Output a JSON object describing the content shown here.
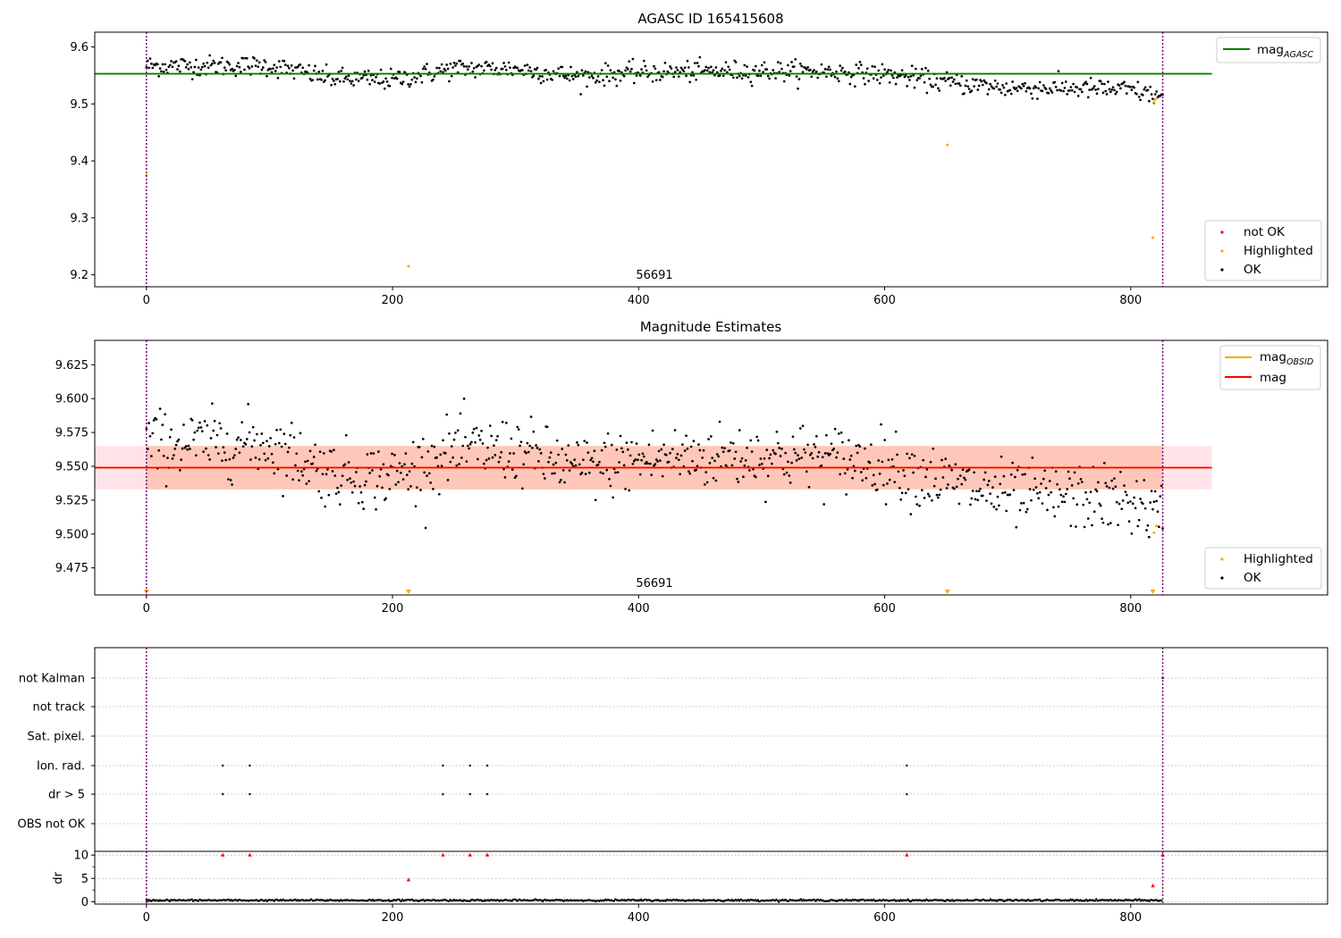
{
  "figure": {
    "background": "#ffffff"
  },
  "colors": {
    "ok": "#000000",
    "highlighted": "#ffa500",
    "not_ok": "#ff0000",
    "agasc_line": "#008000",
    "obsid_line": "#ffa500",
    "mag_line": "#ff0000",
    "band_outer": "#ffc0cb",
    "band_inner": "#ffa07a",
    "vline": "#800080",
    "grid": "#b0b0b0"
  },
  "chart_data": [
    {
      "type": "scatter",
      "title": "AGASC ID 165415608",
      "annotation": "56691",
      "xlim": [
        -42,
        960
      ],
      "ylim": [
        9.179,
        9.626
      ],
      "xticks": [
        0,
        200,
        400,
        600,
        800
      ],
      "yticks": [
        9.2,
        9.3,
        9.4,
        9.5,
        9.6
      ],
      "ytick_labels": [
        "9.2",
        "9.3",
        "9.4",
        "9.5",
        "9.6"
      ],
      "vlines": [
        0,
        826
      ],
      "hlines": [
        {
          "name": "mag_AGASC",
          "y": 9.553,
          "x_range": [
            -42,
            866
          ]
        }
      ],
      "legend_lines": [
        {
          "label": "mag",
          "sub": "AGASC"
        }
      ],
      "legend_points": [
        "not OK",
        "Highlighted",
        "OK"
      ],
      "ok_series": {
        "name": "OK",
        "n_points": 820,
        "x_range": [
          0,
          826
        ],
        "trend": [
          [
            0,
            9.567
          ],
          [
            100,
            9.567
          ],
          [
            150,
            9.545
          ],
          [
            200,
            9.542
          ],
          [
            250,
            9.562
          ],
          [
            300,
            9.562
          ],
          [
            350,
            9.548
          ],
          [
            400,
            9.555
          ],
          [
            450,
            9.557
          ],
          [
            500,
            9.558
          ],
          [
            550,
            9.557
          ],
          [
            600,
            9.552
          ],
          [
            650,
            9.538
          ],
          [
            700,
            9.528
          ],
          [
            750,
            9.528
          ],
          [
            800,
            9.524
          ],
          [
            826,
            9.512
          ]
        ],
        "scatter_sd": 0.009
      },
      "highlighted": [
        {
          "x": 0,
          "y": 9.375
        },
        {
          "x": 213,
          "y": 9.215
        },
        {
          "x": 651,
          "y": 9.428
        },
        {
          "x": 818,
          "y": 9.265
        },
        {
          "x": 819,
          "y": 9.503
        },
        {
          "x": 820,
          "y": 9.508
        }
      ]
    },
    {
      "type": "scatter",
      "title": "Magnitude Estimates",
      "annotation": "56691",
      "xlim": [
        -42,
        960
      ],
      "ylim": [
        9.455,
        9.643
      ],
      "xticks": [
        0,
        200,
        400,
        600,
        800
      ],
      "yticks": [
        9.475,
        9.5,
        9.525,
        9.55,
        9.575,
        9.6,
        9.625
      ],
      "ytick_labels": [
        "9.475",
        "9.500",
        "9.525",
        "9.550",
        "9.575",
        "9.600",
        "9.625"
      ],
      "vlines": [
        0,
        826
      ],
      "hlines": [
        {
          "name": "mag_OBSID",
          "y": 9.549,
          "x_range": [
            -42,
            866
          ]
        },
        {
          "name": "mag",
          "y": 9.549,
          "x_range": [
            -42,
            866
          ]
        }
      ],
      "bands": [
        {
          "name": "mag-range",
          "y": [
            9.533,
            9.565
          ],
          "x_range": [
            -42,
            866
          ]
        },
        {
          "name": "mag_OBSID-range",
          "y": [
            9.533,
            9.565
          ],
          "x_range": [
            0,
            826
          ]
        }
      ],
      "legend_lines": [
        {
          "label": "mag",
          "sub": "OBSID"
        },
        {
          "label": "mag",
          "sub": ""
        }
      ],
      "legend_points": [
        "Highlighted",
        "OK"
      ],
      "ok_series": {
        "name": "OK",
        "n_points": 820,
        "x_range": [
          0,
          826
        ],
        "trend": [
          [
            0,
            9.567
          ],
          [
            100,
            9.567
          ],
          [
            150,
            9.545
          ],
          [
            200,
            9.542
          ],
          [
            250,
            9.562
          ],
          [
            300,
            9.562
          ],
          [
            350,
            9.548
          ],
          [
            400,
            9.555
          ],
          [
            450,
            9.557
          ],
          [
            500,
            9.558
          ],
          [
            550,
            9.557
          ],
          [
            600,
            9.552
          ],
          [
            650,
            9.538
          ],
          [
            700,
            9.528
          ],
          [
            750,
            9.528
          ],
          [
            800,
            9.524
          ],
          [
            826,
            9.512
          ]
        ],
        "scatter_sd": 0.012
      },
      "highlighted": [
        {
          "x": 819,
          "y": 9.501
        },
        {
          "x": 821,
          "y": 9.506
        }
      ],
      "off_scale_markers": [
        0,
        213,
        651,
        818
      ]
    },
    {
      "type": "scatter",
      "title": "",
      "xlim": [
        -42,
        960
      ],
      "xticks": [
        0,
        200,
        400,
        600,
        800
      ],
      "flag_rows": [
        "not Kalman",
        "not track",
        "Sat. pixel.",
        "Ion. rad.",
        "dr > 5",
        "OBS not OK"
      ],
      "flag_points": {
        "Ion. rad.": [
          62,
          84,
          241,
          263,
          277,
          618
        ],
        "dr > 5": [
          62,
          84,
          241,
          263,
          277,
          618
        ],
        "not Kalman": [
          826
        ]
      },
      "dr": {
        "ylabel": "dr",
        "ylim": [
          -0.5,
          10.8
        ],
        "yticks": [
          0,
          5,
          10
        ],
        "ytick_labels": [
          "0",
          "5",
          "10"
        ],
        "ok_level": 0.3,
        "not_ok": [
          {
            "x": 62,
            "y": 10
          },
          {
            "x": 84,
            "y": 10
          },
          {
            "x": 213,
            "y": 4.7
          },
          {
            "x": 241,
            "y": 10
          },
          {
            "x": 263,
            "y": 10
          },
          {
            "x": 277,
            "y": 10
          },
          {
            "x": 618,
            "y": 10
          },
          {
            "x": 818,
            "y": 3.4
          },
          {
            "x": 826,
            "y": 10
          }
        ]
      }
    }
  ]
}
